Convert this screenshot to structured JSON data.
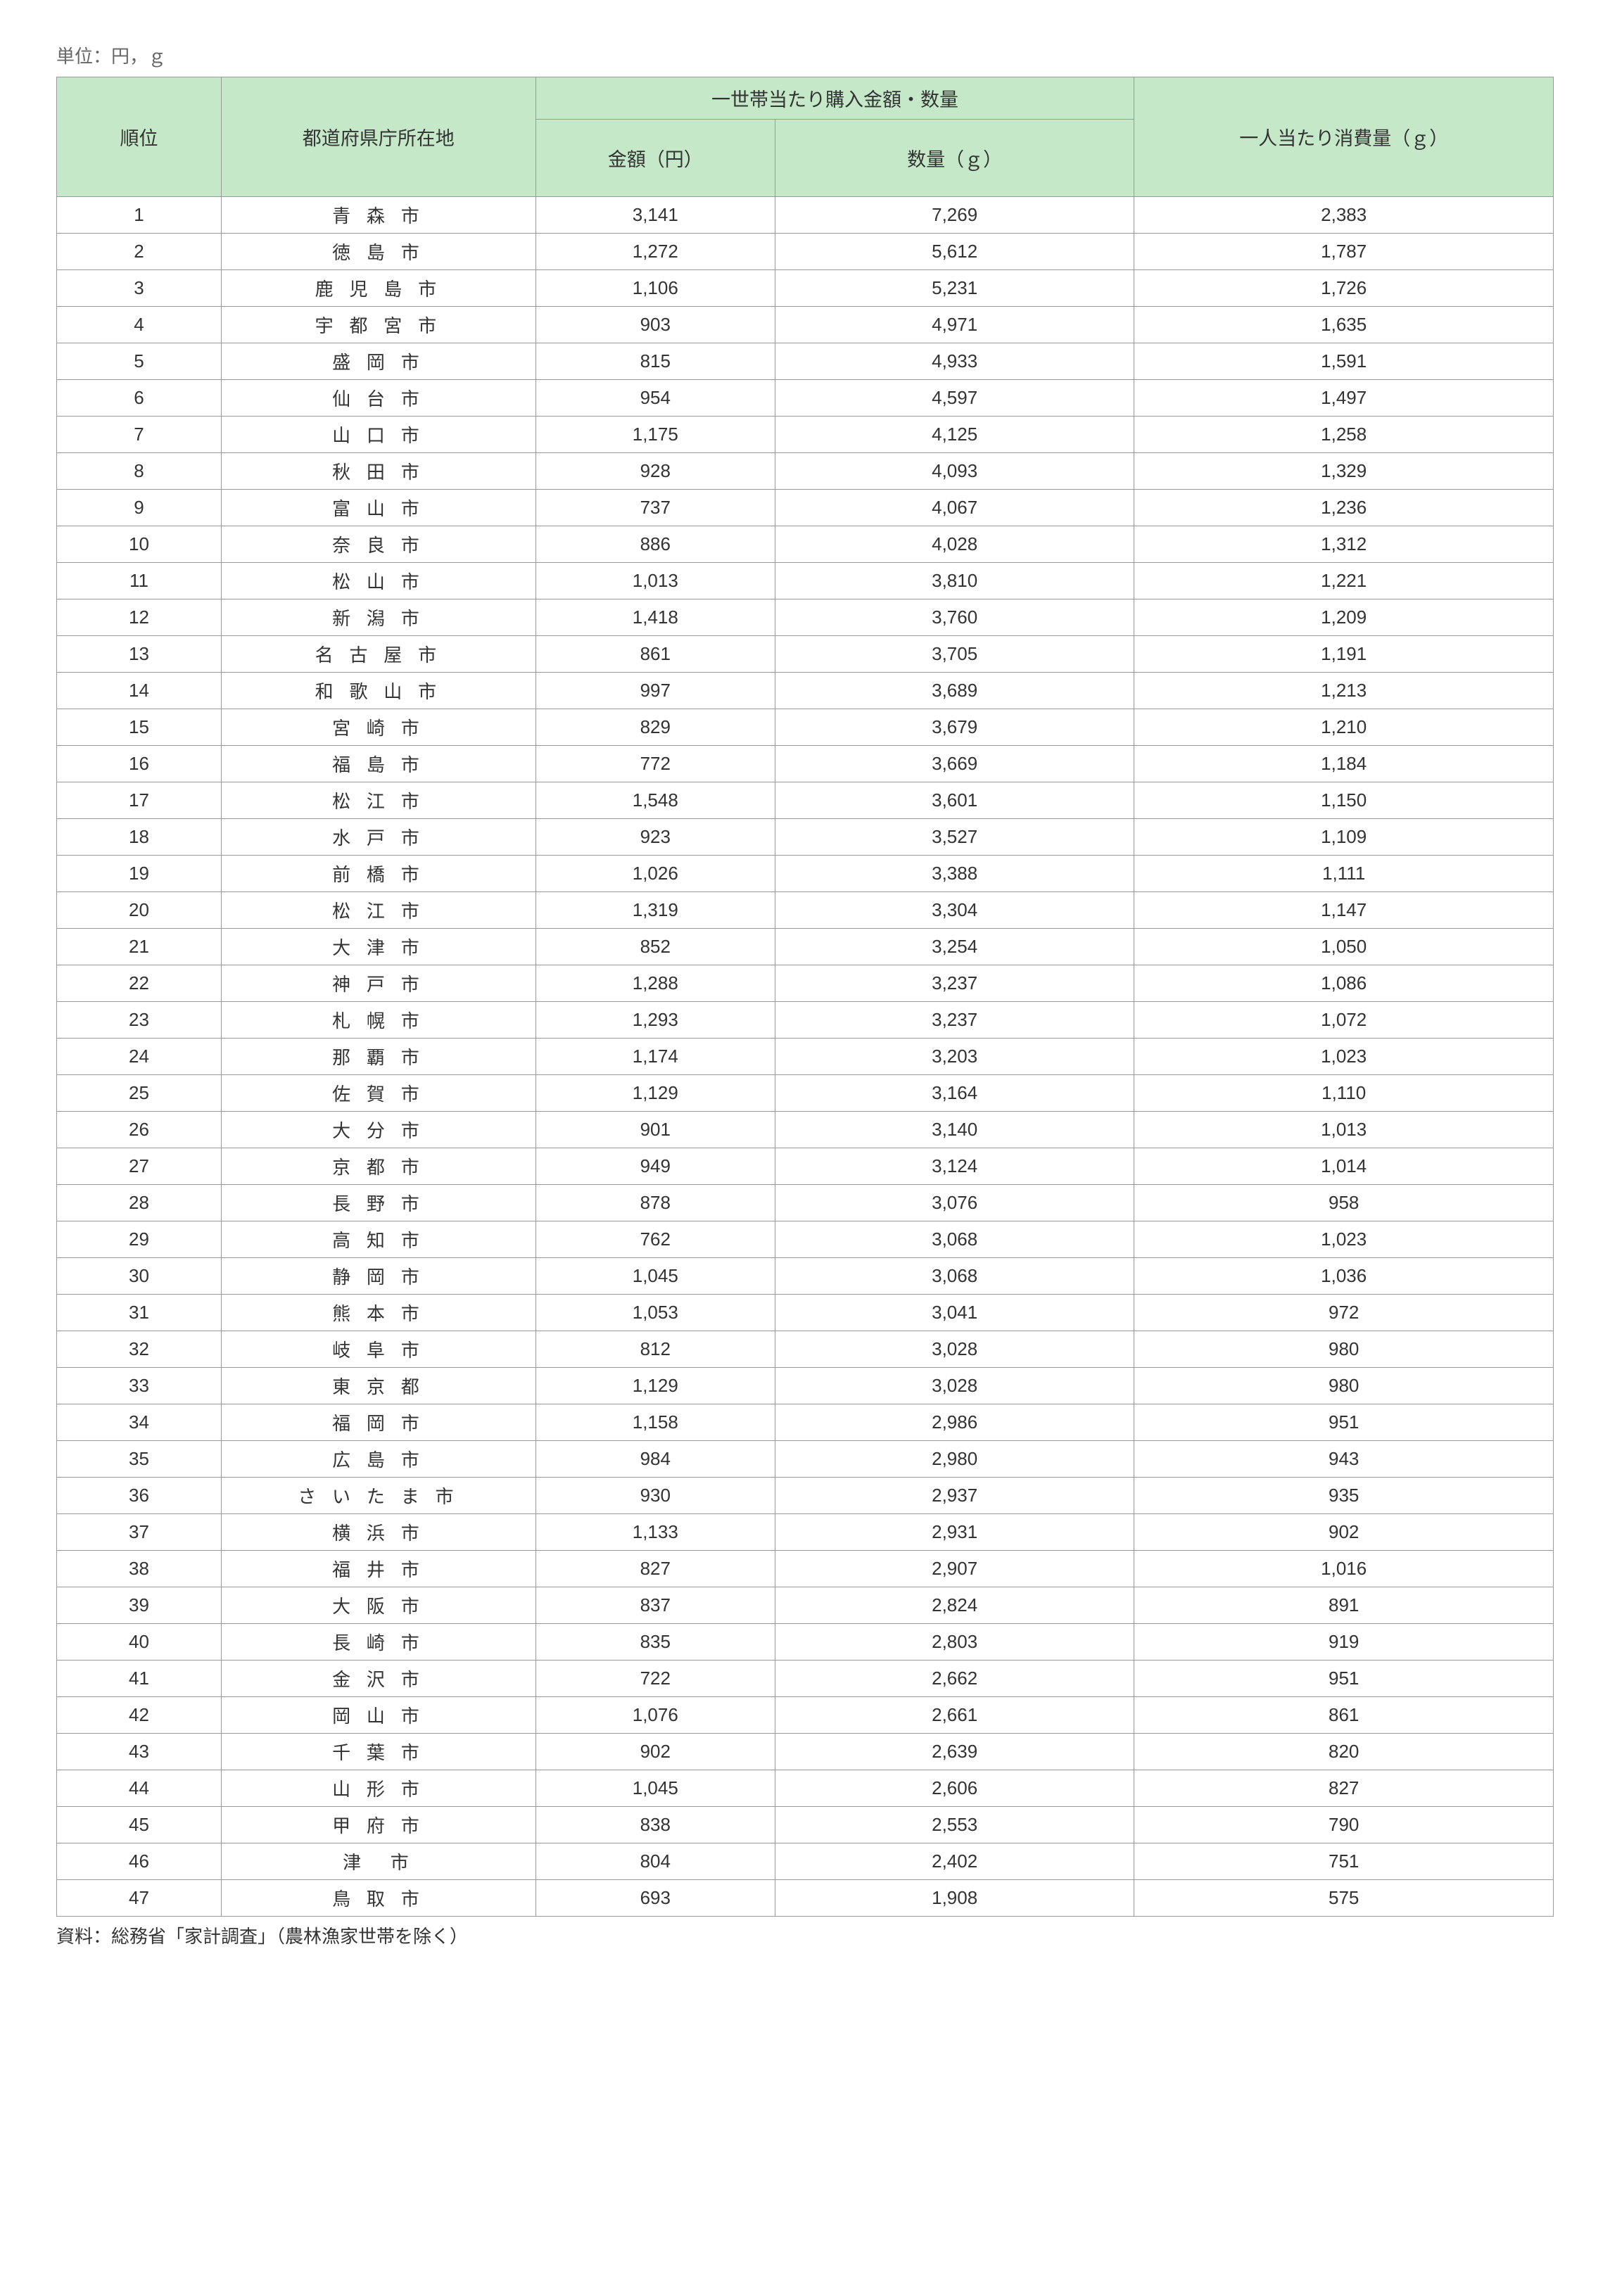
{
  "unit_label": "単位：円，ｇ",
  "headers": {
    "rank": "順位",
    "city": "都道府県庁所在地",
    "group": "一世帯当たり購入金額・数量",
    "amount": "金額（円）",
    "quantity": "数量（ｇ）",
    "per_person": "一人当たり消費量（ｇ）"
  },
  "footnote": "資料：総務省「家計調査」（農林漁家世帯を除く）",
  "style": {
    "header_bg": "#c5e8c8",
    "border_color": "#999999",
    "text_color": "#333333",
    "unit_color": "#666666",
    "font_family": "MS PGothic, Hiragino Sans, Meiryo, sans-serif",
    "body_fontsize": 26,
    "header_fontsize": 27
  },
  "columns": [
    "rank",
    "city",
    "amount",
    "quantity",
    "per_person"
  ],
  "column_widths": {
    "rank": "11%",
    "city": "21%",
    "amount": "16%",
    "quantity": "24%",
    "per_person": "28%"
  },
  "rows": [
    {
      "rank": "1",
      "city": "青 森 市",
      "amount": "3,141",
      "quantity": "7,269",
      "per_person": "2,383"
    },
    {
      "rank": "2",
      "city": "徳 島 市",
      "amount": "1,272",
      "quantity": "5,612",
      "per_person": "1,787"
    },
    {
      "rank": "3",
      "city": "鹿 児 島 市",
      "amount": "1,106",
      "quantity": "5,231",
      "per_person": "1,726"
    },
    {
      "rank": "4",
      "city": "宇 都 宮 市",
      "amount": "903",
      "quantity": "4,971",
      "per_person": "1,635"
    },
    {
      "rank": "5",
      "city": "盛 岡 市",
      "amount": "815",
      "quantity": "4,933",
      "per_person": "1,591"
    },
    {
      "rank": "6",
      "city": "仙 台 市",
      "amount": "954",
      "quantity": "4,597",
      "per_person": "1,497"
    },
    {
      "rank": "7",
      "city": "山 口 市",
      "amount": "1,175",
      "quantity": "4,125",
      "per_person": "1,258"
    },
    {
      "rank": "8",
      "city": "秋 田 市",
      "amount": "928",
      "quantity": "4,093",
      "per_person": "1,329"
    },
    {
      "rank": "9",
      "city": "富 山 市",
      "amount": "737",
      "quantity": "4,067",
      "per_person": "1,236"
    },
    {
      "rank": "10",
      "city": "奈 良 市",
      "amount": "886",
      "quantity": "4,028",
      "per_person": "1,312"
    },
    {
      "rank": "11",
      "city": "松 山 市",
      "amount": "1,013",
      "quantity": "3,810",
      "per_person": "1,221"
    },
    {
      "rank": "12",
      "city": "新 潟 市",
      "amount": "1,418",
      "quantity": "3,760",
      "per_person": "1,209"
    },
    {
      "rank": "13",
      "city": "名 古 屋 市",
      "amount": "861",
      "quantity": "3,705",
      "per_person": "1,191"
    },
    {
      "rank": "14",
      "city": "和 歌 山 市",
      "amount": "997",
      "quantity": "3,689",
      "per_person": "1,213"
    },
    {
      "rank": "15",
      "city": "宮 崎 市",
      "amount": "829",
      "quantity": "3,679",
      "per_person": "1,210"
    },
    {
      "rank": "16",
      "city": "福 島 市",
      "amount": "772",
      "quantity": "3,669",
      "per_person": "1,184"
    },
    {
      "rank": "17",
      "city": "松 江 市",
      "amount": "1,548",
      "quantity": "3,601",
      "per_person": "1,150"
    },
    {
      "rank": "18",
      "city": "水 戸 市",
      "amount": "923",
      "quantity": "3,527",
      "per_person": "1,109"
    },
    {
      "rank": "19",
      "city": "前 橋 市",
      "amount": "1,026",
      "quantity": "3,388",
      "per_person": "1,111"
    },
    {
      "rank": "20",
      "city": "松 江 市",
      "amount": "1,319",
      "quantity": "3,304",
      "per_person": "1,147"
    },
    {
      "rank": "21",
      "city": "大 津 市",
      "amount": "852",
      "quantity": "3,254",
      "per_person": "1,050"
    },
    {
      "rank": "22",
      "city": "神 戸 市",
      "amount": "1,288",
      "quantity": "3,237",
      "per_person": "1,086"
    },
    {
      "rank": "23",
      "city": "札 幌 市",
      "amount": "1,293",
      "quantity": "3,237",
      "per_person": "1,072"
    },
    {
      "rank": "24",
      "city": "那 覇 市",
      "amount": "1,174",
      "quantity": "3,203",
      "per_person": "1,023"
    },
    {
      "rank": "25",
      "city": "佐 賀 市",
      "amount": "1,129",
      "quantity": "3,164",
      "per_person": "1,110"
    },
    {
      "rank": "26",
      "city": "大 分 市",
      "amount": "901",
      "quantity": "3,140",
      "per_person": "1,013"
    },
    {
      "rank": "27",
      "city": "京 都 市",
      "amount": "949",
      "quantity": "3,124",
      "per_person": "1,014"
    },
    {
      "rank": "28",
      "city": "長 野 市",
      "amount": "878",
      "quantity": "3,076",
      "per_person": "958"
    },
    {
      "rank": "29",
      "city": "高 知 市",
      "amount": "762",
      "quantity": "3,068",
      "per_person": "1,023"
    },
    {
      "rank": "30",
      "city": "静 岡 市",
      "amount": "1,045",
      "quantity": "3,068",
      "per_person": "1,036"
    },
    {
      "rank": "31",
      "city": "熊 本 市",
      "amount": "1,053",
      "quantity": "3,041",
      "per_person": "972"
    },
    {
      "rank": "32",
      "city": "岐 阜 市",
      "amount": "812",
      "quantity": "3,028",
      "per_person": "980"
    },
    {
      "rank": "33",
      "city": "東 京 都",
      "amount": "1,129",
      "quantity": "3,028",
      "per_person": "980"
    },
    {
      "rank": "34",
      "city": "福 岡 市",
      "amount": "1,158",
      "quantity": "2,986",
      "per_person": "951"
    },
    {
      "rank": "35",
      "city": "広 島 市",
      "amount": "984",
      "quantity": "2,980",
      "per_person": "943"
    },
    {
      "rank": "36",
      "city": "さ い た ま 市",
      "amount": "930",
      "quantity": "2,937",
      "per_person": "935"
    },
    {
      "rank": "37",
      "city": "横 浜 市",
      "amount": "1,133",
      "quantity": "2,931",
      "per_person": "902"
    },
    {
      "rank": "38",
      "city": "福 井 市",
      "amount": "827",
      "quantity": "2,907",
      "per_person": "1,016"
    },
    {
      "rank": "39",
      "city": "大 阪 市",
      "amount": "837",
      "quantity": "2,824",
      "per_person": "891"
    },
    {
      "rank": "40",
      "city": "長 崎 市",
      "amount": "835",
      "quantity": "2,803",
      "per_person": "919"
    },
    {
      "rank": "41",
      "city": "金 沢 市",
      "amount": "722",
      "quantity": "2,662",
      "per_person": "951"
    },
    {
      "rank": "42",
      "city": "岡 山 市",
      "amount": "1,076",
      "quantity": "2,661",
      "per_person": "861"
    },
    {
      "rank": "43",
      "city": "千 葉 市",
      "amount": "902",
      "quantity": "2,639",
      "per_person": "820"
    },
    {
      "rank": "44",
      "city": "山 形 市",
      "amount": "1,045",
      "quantity": "2,606",
      "per_person": "827"
    },
    {
      "rank": "45",
      "city": "甲 府 市",
      "amount": "838",
      "quantity": "2,553",
      "per_person": "790"
    },
    {
      "rank": "46",
      "city": "津　市",
      "amount": "804",
      "quantity": "2,402",
      "per_person": "751"
    },
    {
      "rank": "47",
      "city": "鳥 取 市",
      "amount": "693",
      "quantity": "1,908",
      "per_person": "575"
    }
  ]
}
